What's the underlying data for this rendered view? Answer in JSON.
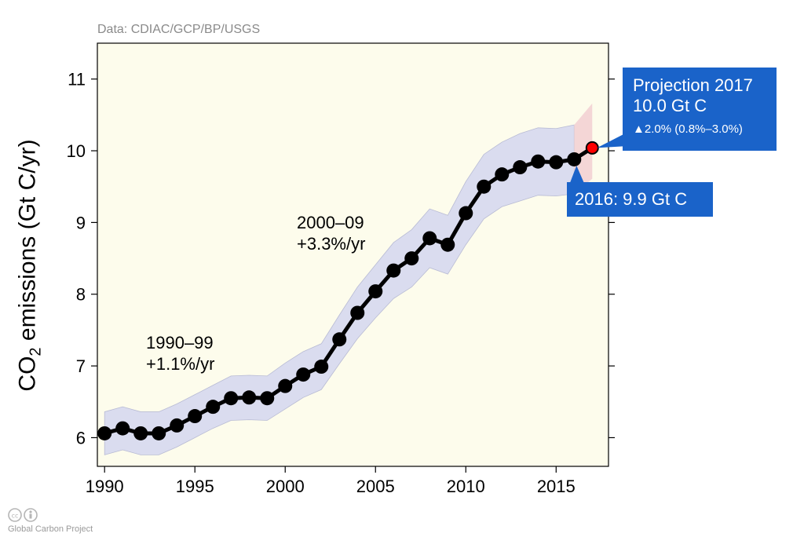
{
  "source_note": "Data: CDIAC/GCP/BP/USGS",
  "y_axis_label": "CO₂ emissions (Gt C/yr)",
  "annotations": {
    "period1_range": "1990–99",
    "period1_rate": "+1.1%/yr",
    "period2_range": "2000–09",
    "period2_rate": "+3.3%/yr",
    "projection_title": "Projection 2017",
    "projection_value": "10.0 Gt C",
    "projection_change": "▲2.0% (0.8%–3.0%)",
    "year2016_label": "2016: 9.9 Gt C"
  },
  "footer": {
    "org": "Global Carbon Project"
  },
  "colors": {
    "plot_background": "#fdfcec",
    "uncertainty_band": "#dadcef",
    "projection_band": "#f4d6d6",
    "line": "#000000",
    "projection_point": "#ff0000",
    "callout": "#1a63c9"
  },
  "chart_data": {
    "type": "line",
    "x": [
      1990,
      1991,
      1992,
      1993,
      1994,
      1995,
      1996,
      1997,
      1998,
      1999,
      2000,
      2001,
      2002,
      2003,
      2004,
      2005,
      2006,
      2007,
      2008,
      2009,
      2010,
      2011,
      2012,
      2013,
      2014,
      2015,
      2016,
      2017
    ],
    "series": [
      {
        "values": [
          6.06,
          6.13,
          6.06,
          6.06,
          6.17,
          6.3,
          6.43,
          6.55,
          6.56,
          6.55,
          6.72,
          6.88,
          6.99,
          7.37,
          7.74,
          8.04,
          8.33,
          8.5,
          8.78,
          8.69,
          9.13,
          9.5,
          9.67,
          9.77,
          9.85,
          9.84,
          9.88,
          10.04
        ],
        "uncertainty_low": [
          5.76,
          5.83,
          5.76,
          5.76,
          5.87,
          6.0,
          6.13,
          6.24,
          6.25,
          6.24,
          6.4,
          6.56,
          6.67,
          7.03,
          7.38,
          7.67,
          7.94,
          8.1,
          8.37,
          8.28,
          8.69,
          9.05,
          9.22,
          9.3,
          9.38,
          9.37,
          9.4,
          9.61
        ],
        "uncertainty_high": [
          6.36,
          6.43,
          6.36,
          6.36,
          6.47,
          6.6,
          6.73,
          6.86,
          6.87,
          6.86,
          7.04,
          7.2,
          7.31,
          7.71,
          8.1,
          8.41,
          8.72,
          8.9,
          9.19,
          9.1,
          9.57,
          9.95,
          10.12,
          10.24,
          10.32,
          10.31,
          10.36,
          10.66
        ]
      }
    ],
    "projection": {
      "x": 2017,
      "value": 10.04,
      "low": 9.96,
      "high": 10.18
    },
    "xlim": [
      1989.6,
      2017.9
    ],
    "ylim": [
      5.6,
      11.5
    ],
    "xticks": [
      1990,
      1995,
      2000,
      2005,
      2010,
      2015
    ],
    "yticks": [
      6,
      7,
      8,
      9,
      10,
      11
    ],
    "ylabel": "CO₂ emissions (Gt C/yr)",
    "grid": false
  }
}
